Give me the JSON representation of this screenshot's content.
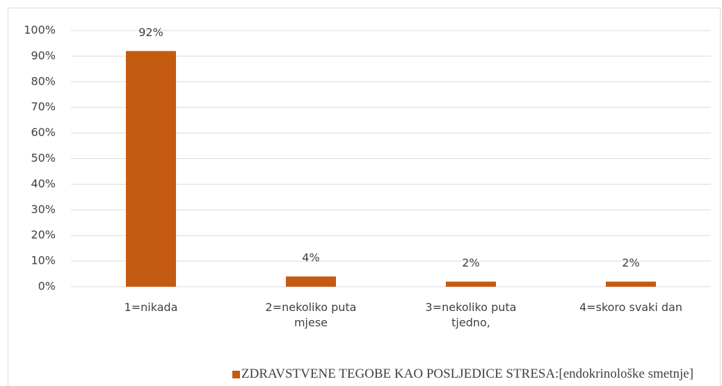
{
  "chart_data": {
    "type": "bar",
    "categories": [
      "1=nikada",
      "2=nekoliko puta mjese",
      "3=nekoliko puta tjedno,",
      "4=skoro svaki dan"
    ],
    "series": [
      {
        "name": "ZDRAVSTVENE TEGOBE KAO POSLJEDICE STRESA:[endokrinološke smetnje]",
        "color": "#c55a11",
        "values": [
          92,
          4,
          2,
          2
        ],
        "value_labels": [
          "92%",
          "4%",
          "2%",
          "2%"
        ]
      }
    ],
    "ylim": [
      0,
      100
    ],
    "yticks": [
      {
        "value": 0,
        "label": "0%"
      },
      {
        "value": 10,
        "label": "10%"
      },
      {
        "value": 20,
        "label": "20%"
      },
      {
        "value": 30,
        "label": "30%"
      },
      {
        "value": 40,
        "label": "40%"
      },
      {
        "value": 50,
        "label": "50%"
      },
      {
        "value": 60,
        "label": "60%"
      },
      {
        "value": 70,
        "label": "70%"
      },
      {
        "value": 80,
        "label": "80%"
      },
      {
        "value": 90,
        "label": "90%"
      },
      {
        "value": 100,
        "label": "100%"
      }
    ],
    "grid": true,
    "legend": "bottom"
  }
}
